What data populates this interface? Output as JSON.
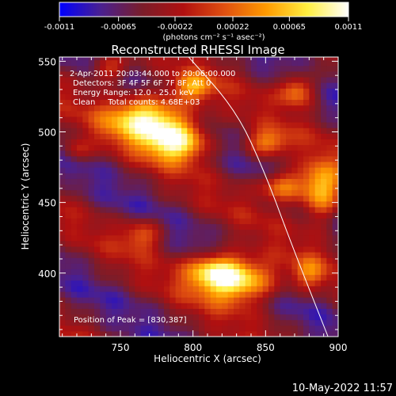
{
  "chart_data": {
    "type": "heatmap",
    "title": "Reconstructed RHESSI Image",
    "xlabel": "Heliocentric X (arcsec)",
    "ylabel": "Heliocentric Y (arcsec)",
    "xlim": [
      708,
      900
    ],
    "ylim": [
      355,
      553
    ],
    "x_ticks": [
      "750",
      "800",
      "850",
      "900"
    ],
    "y_ticks": [
      "400",
      "450",
      "500",
      "550"
    ],
    "x_tick_values": [
      750,
      800,
      850,
      900
    ],
    "y_tick_values": [
      400,
      450,
      500,
      550
    ],
    "colorbar": {
      "label": "(photons cm⁻² s⁻¹ asec⁻²)",
      "min": -0.0011,
      "max": 0.0011,
      "tick_labels": [
        "-0.0011",
        "-0.00065",
        "-0.00022",
        "0.00022",
        "0.00065",
        "0.0011"
      ],
      "tick_values": [
        -0.0011,
        -0.00065,
        -0.00022,
        0.00022,
        0.00065,
        0.0011
      ],
      "colormap": [
        "#0000ff",
        "#4a2090",
        "#7a1d2a",
        "#b01010",
        "#e05010",
        "#ff9a00",
        "#ffee40",
        "#ffffff"
      ]
    },
    "annotations": [
      "2-Apr-2011 20:03:44.000 to 20:06:00.000",
      "Detectors: 3F 4F 5F 6F 7F 8F, Att 0",
      "Energy Range: 12.0 - 25.0 keV",
      "Clean     Total counts: 4.68E+03"
    ],
    "peak_label": "Position of Peak = [830,387]",
    "peak": [
      830,
      387
    ],
    "sources": [
      {
        "x": 770,
        "y": 510,
        "amp": 1.0,
        "sx": 20,
        "sy": 12
      },
      {
        "x": 790,
        "y": 493,
        "amp": 0.85,
        "sx": 15,
        "sy": 10
      },
      {
        "x": 832,
        "y": 395,
        "amp": 0.95,
        "sx": 19,
        "sy": 11
      },
      {
        "x": 815,
        "y": 403,
        "amp": 0.65,
        "sx": 14,
        "sy": 9
      },
      {
        "x": 888,
        "y": 458,
        "amp": 0.85,
        "sx": 10,
        "sy": 14
      },
      {
        "x": 862,
        "y": 462,
        "amp": 0.7,
        "sx": 11,
        "sy": 8
      },
      {
        "x": 872,
        "y": 530,
        "amp": 0.65,
        "sx": 9,
        "sy": 8
      },
      {
        "x": 850,
        "y": 492,
        "amp": 0.55,
        "sx": 11,
        "sy": 7
      },
      {
        "x": 742,
        "y": 545,
        "amp": 0.5,
        "sx": 9,
        "sy": 7
      },
      {
        "x": 800,
        "y": 532,
        "amp": 0.55,
        "sx": 10,
        "sy": 7
      },
      {
        "x": 766,
        "y": 428,
        "amp": 0.45,
        "sx": 10,
        "sy": 8
      },
      {
        "x": 720,
        "y": 487,
        "amp": 0.35,
        "sx": 7,
        "sy": 6
      },
      {
        "x": 880,
        "y": 400,
        "amp": 0.4,
        "sx": 8,
        "sy": 8
      }
    ],
    "limb_curve": [
      [
        797,
        553
      ],
      [
        830,
        515
      ],
      [
        850,
        470
      ],
      [
        868,
        420
      ],
      [
        893,
        355
      ]
    ],
    "limb_color": "#ffffff"
  },
  "timestamp": "10-May-2022 11:57"
}
